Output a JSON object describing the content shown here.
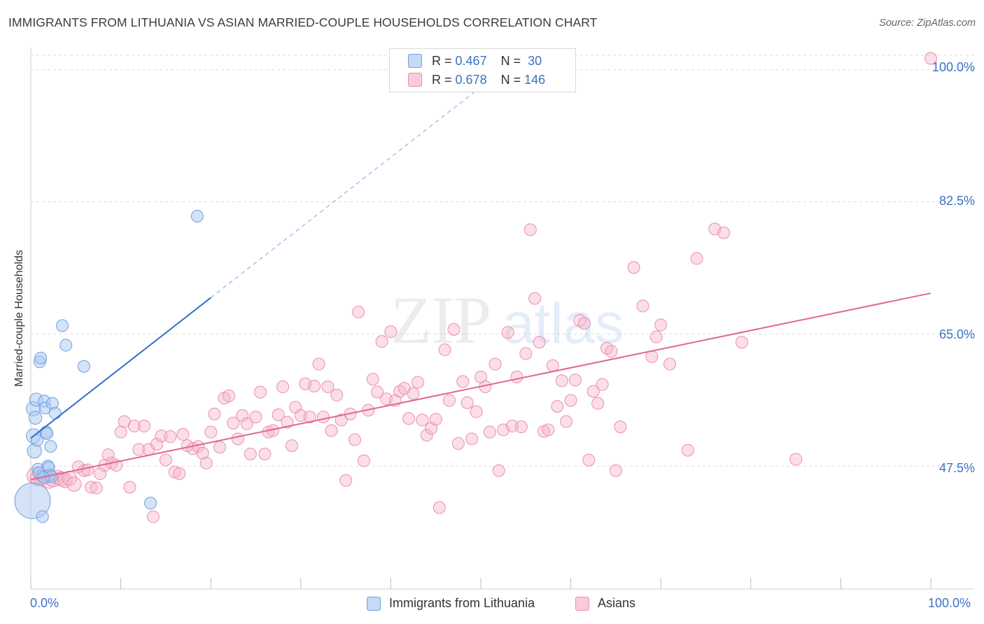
{
  "header": {
    "title": "IMMIGRANTS FROM LITHUANIA VS ASIAN MARRIED-COUPLE HOUSEHOLDS CORRELATION CHART",
    "source": "Source: ZipAtlas.com"
  },
  "watermark": {
    "left": "ZIP",
    "right": "atlas"
  },
  "colors": {
    "blue_fill": "#a9c8f2",
    "blue_stroke": "#6f9fe0",
    "blue_line": "#2f6fcc",
    "pink_fill": "#f6b6cb",
    "pink_stroke": "#e98fae",
    "pink_line": "#e06792",
    "axis_label": "#3a73c4",
    "grid": "#dddddd"
  },
  "legend_top": {
    "rows": [
      {
        "r_label": "R = ",
        "r_value": "0.467",
        "n_label": "N = ",
        "n_value": "30",
        "series": "blue"
      },
      {
        "r_label": "R = ",
        "r_value": "0.678",
        "n_label": "N = ",
        "n_value": "146",
        "series": "pink"
      }
    ]
  },
  "legend_bottom": {
    "items": [
      {
        "label": "Immigrants from Lithuania",
        "series": "blue"
      },
      {
        "label": "Asians",
        "series": "pink"
      }
    ]
  },
  "chart_data": {
    "type": "scatter",
    "title": "IMMIGRANTS FROM LITHUANIA VS ASIAN MARRIED-COUPLE HOUSEHOLDS CORRELATION CHART",
    "xlabel": "",
    "ylabel": "Married-couple Households",
    "xlim": [
      0,
      100
    ],
    "ylim": [
      32.7,
      102
    ],
    "x_tick_labels": [
      "0.0%",
      "100.0%"
    ],
    "y_ticks": [
      47.5,
      65.0,
      82.5,
      100.0
    ],
    "y_tick_labels": [
      "47.5%",
      "65.0%",
      "82.5%",
      "100.0%"
    ],
    "grid": true,
    "legend_position": "top-center",
    "series": [
      {
        "name": "Immigrants from Lithuania",
        "color": "#a9c8f2",
        "R": 0.467,
        "N": 30,
        "trend": {
          "x": [
            0,
            20
          ],
          "y": [
            51.2,
            69.8
          ],
          "dashed_to": [
            50,
            97.7
          ]
        },
        "points": [
          [
            0.2,
            42.9,
            3
          ],
          [
            0.3,
            55.1,
            1.2
          ],
          [
            0.3,
            51.5,
            1.2
          ],
          [
            0.4,
            49.5,
            1.2
          ],
          [
            0.5,
            53.9,
            1.1
          ],
          [
            0.6,
            56.3,
            1.1
          ],
          [
            0.7,
            50.9,
            1.0
          ],
          [
            0.8,
            47.1,
            1.0
          ],
          [
            1.0,
            61.3,
            1.0
          ],
          [
            1.1,
            61.8,
            1.0
          ],
          [
            1.2,
            46.2,
            1.0
          ],
          [
            1.3,
            40.8,
            1.0
          ],
          [
            1.5,
            56.1,
            1.0
          ],
          [
            1.6,
            55.2,
            1.0
          ],
          [
            1.7,
            52.0,
            1.0
          ],
          [
            1.8,
            51.8,
            1.0
          ],
          [
            1.9,
            47.5,
            1.0
          ],
          [
            2.0,
            47.3,
            1.0
          ],
          [
            2.1,
            46.3,
            1.0
          ],
          [
            2.2,
            50.1,
            1.0
          ],
          [
            2.3,
            46.1,
            1.0
          ],
          [
            2.4,
            55.8,
            1.0
          ],
          [
            2.7,
            54.5,
            1.0
          ],
          [
            3.5,
            66.1,
            1.0
          ],
          [
            3.9,
            63.5,
            1.0
          ],
          [
            5.9,
            60.7,
            1.0
          ],
          [
            13.3,
            42.6,
            1.0
          ],
          [
            18.5,
            80.6,
            1.0
          ],
          [
            0.9,
            46.6,
            1.0
          ],
          [
            1.4,
            46.0,
            1.0
          ]
        ]
      },
      {
        "name": "Asians",
        "color": "#f6b6cb",
        "R": 0.678,
        "N": 146,
        "trend": {
          "x": [
            0,
            100
          ],
          "y": [
            45.7,
            70.4
          ]
        },
        "points": [
          [
            0.5,
            46.2,
            1.4
          ],
          [
            0.8,
            45.9,
            1.3
          ],
          [
            1.2,
            45.8,
            1.2
          ],
          [
            1.6,
            46.1,
            1.2
          ],
          [
            2.0,
            45.5,
            1.2
          ],
          [
            2.5,
            45.7,
            1.2
          ],
          [
            3.0,
            46.0,
            1.2
          ],
          [
            3.4,
            45.8,
            1.2
          ],
          [
            3.8,
            45.6,
            1.2
          ],
          [
            4.3,
            45.9,
            1.2
          ],
          [
            4.8,
            45.1,
            1.2
          ],
          [
            5.3,
            47.4,
            1
          ],
          [
            5.9,
            46.9,
            1
          ],
          [
            6.3,
            47.0,
            1
          ],
          [
            6.7,
            44.7,
            1
          ],
          [
            7.3,
            44.6,
            1
          ],
          [
            7.7,
            46.5,
            1
          ],
          [
            8.2,
            47.6,
            1
          ],
          [
            8.6,
            49.0,
            1
          ],
          [
            9.0,
            47.9,
            1
          ],
          [
            9.5,
            47.6,
            1
          ],
          [
            10.0,
            52.0,
            1
          ],
          [
            10.4,
            53.4,
            1
          ],
          [
            11.0,
            44.7,
            1
          ],
          [
            11.5,
            52.8,
            1
          ],
          [
            12.0,
            49.7,
            1
          ],
          [
            12.6,
            52.8,
            1
          ],
          [
            13.1,
            49.7,
            1
          ],
          [
            13.6,
            40.8,
            1
          ],
          [
            14.0,
            50.4,
            1
          ],
          [
            14.5,
            51.5,
            1
          ],
          [
            15.0,
            48.3,
            1
          ],
          [
            15.5,
            51.4,
            1
          ],
          [
            16.0,
            46.7,
            1
          ],
          [
            16.5,
            46.5,
            1
          ],
          [
            16.9,
            51.7,
            1
          ],
          [
            17.4,
            50.2,
            1
          ],
          [
            18.0,
            49.8,
            1
          ],
          [
            18.6,
            50.1,
            1
          ],
          [
            19.1,
            49.2,
            1
          ],
          [
            19.5,
            47.9,
            1
          ],
          [
            20.0,
            52.0,
            1
          ],
          [
            20.4,
            54.4,
            1
          ],
          [
            21.0,
            50.0,
            1
          ],
          [
            21.5,
            56.5,
            1
          ],
          [
            22.0,
            56.8,
            1
          ],
          [
            22.5,
            53.2,
            1
          ],
          [
            23.0,
            51.1,
            1
          ],
          [
            23.5,
            54.2,
            1
          ],
          [
            24.0,
            53.1,
            1
          ],
          [
            24.4,
            49.1,
            1
          ],
          [
            25.0,
            54.0,
            1
          ],
          [
            25.5,
            57.3,
            1
          ],
          [
            26.0,
            49.1,
            1
          ],
          [
            26.4,
            52.0,
            1
          ],
          [
            26.9,
            52.2,
            1
          ],
          [
            27.5,
            54.3,
            1
          ],
          [
            28.0,
            58.0,
            1
          ],
          [
            28.5,
            53.3,
            1
          ],
          [
            29.0,
            50.2,
            1
          ],
          [
            29.4,
            55.3,
            1
          ],
          [
            30.0,
            54.2,
            1
          ],
          [
            30.5,
            58.4,
            1
          ],
          [
            31.0,
            54.0,
            1
          ],
          [
            31.5,
            58.1,
            1
          ],
          [
            32.0,
            61.0,
            1
          ],
          [
            32.5,
            54.0,
            1
          ],
          [
            33.0,
            58.0,
            1
          ],
          [
            33.4,
            52.2,
            1
          ],
          [
            34.0,
            56.9,
            1
          ],
          [
            34.5,
            53.6,
            1
          ],
          [
            35.0,
            45.6,
            1
          ],
          [
            35.5,
            54.4,
            1
          ],
          [
            36.0,
            51.0,
            1
          ],
          [
            36.4,
            67.9,
            1
          ],
          [
            37.0,
            48.2,
            1
          ],
          [
            37.5,
            54.9,
            1
          ],
          [
            38.0,
            59.0,
            1
          ],
          [
            38.5,
            57.3,
            1
          ],
          [
            39.0,
            64.0,
            1
          ],
          [
            39.5,
            56.4,
            1
          ],
          [
            40.0,
            65.3,
            1
          ],
          [
            40.5,
            56.2,
            1
          ],
          [
            41.0,
            57.4,
            1
          ],
          [
            41.5,
            57.8,
            1
          ],
          [
            42.0,
            53.8,
            1
          ],
          [
            42.5,
            57.1,
            1
          ],
          [
            43.0,
            58.6,
            1
          ],
          [
            43.5,
            53.6,
            1
          ],
          [
            44.0,
            51.6,
            1
          ],
          [
            44.5,
            52.5,
            1
          ],
          [
            45.0,
            53.7,
            1
          ],
          [
            45.4,
            42.0,
            1
          ],
          [
            46.0,
            62.9,
            1
          ],
          [
            46.5,
            56.2,
            1
          ],
          [
            47.0,
            65.6,
            1
          ],
          [
            47.5,
            50.5,
            1
          ],
          [
            48.0,
            58.7,
            1
          ],
          [
            48.5,
            55.9,
            1
          ],
          [
            49.0,
            51.1,
            1
          ],
          [
            49.5,
            54.7,
            1
          ],
          [
            50.0,
            59.3,
            1
          ],
          [
            50.5,
            58.0,
            1
          ],
          [
            51.0,
            52.0,
            1
          ],
          [
            51.6,
            61.0,
            1
          ],
          [
            52.0,
            46.9,
            1
          ],
          [
            52.5,
            52.3,
            1
          ],
          [
            53.0,
            65.2,
            1
          ],
          [
            53.5,
            52.8,
            1
          ],
          [
            54.0,
            59.3,
            1
          ],
          [
            54.5,
            52.7,
            1
          ],
          [
            55.0,
            62.4,
            1
          ],
          [
            55.5,
            78.8,
            1
          ],
          [
            56.0,
            69.7,
            1
          ],
          [
            56.5,
            63.9,
            1
          ],
          [
            57.0,
            52.1,
            1
          ],
          [
            57.5,
            52.3,
            1
          ],
          [
            58.0,
            60.8,
            1
          ],
          [
            58.5,
            55.4,
            1
          ],
          [
            59.0,
            58.8,
            1
          ],
          [
            59.5,
            53.4,
            1
          ],
          [
            60.0,
            56.2,
            1
          ],
          [
            60.5,
            58.9,
            1
          ],
          [
            61.0,
            66.8,
            1
          ],
          [
            61.5,
            66.4,
            1
          ],
          [
            62.0,
            48.3,
            1
          ],
          [
            62.5,
            57.4,
            1
          ],
          [
            63.0,
            55.8,
            1
          ],
          [
            63.5,
            58.3,
            1
          ],
          [
            64.0,
            63.1,
            1
          ],
          [
            64.5,
            62.7,
            1
          ],
          [
            65.0,
            46.9,
            1
          ],
          [
            65.5,
            52.7,
            1
          ],
          [
            67.0,
            73.8,
            1
          ],
          [
            68.0,
            68.7,
            1
          ],
          [
            69.0,
            62.0,
            1
          ],
          [
            69.5,
            64.6,
            1
          ],
          [
            70.0,
            66.2,
            1
          ],
          [
            71.0,
            61.0,
            1
          ],
          [
            73.0,
            49.6,
            1
          ],
          [
            74.0,
            75.0,
            1
          ],
          [
            76.0,
            78.9,
            1
          ],
          [
            77.0,
            78.4,
            1
          ],
          [
            79.0,
            63.9,
            1
          ],
          [
            85.0,
            48.4,
            1
          ],
          [
            100.0,
            101.5,
            1
          ]
        ]
      }
    ]
  }
}
